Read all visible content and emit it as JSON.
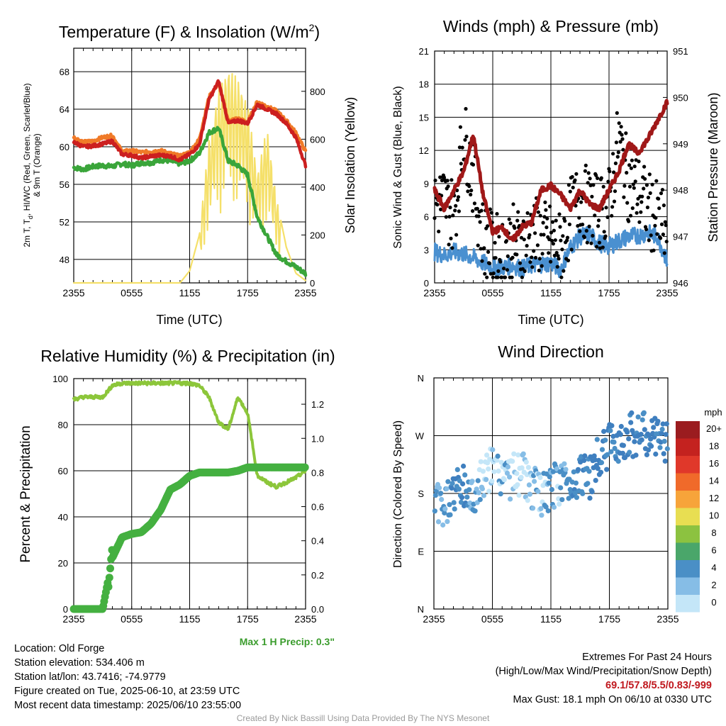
{
  "ticks_time": [
    "2355",
    "0555",
    "1155",
    "1755",
    "2355"
  ],
  "panels": {
    "temp": {
      "title_main": "Temperature (F) & Insolation (W/m",
      "title_sup": "2",
      "title_end": ")",
      "xlabel": "Time (UTC)",
      "ylabel_left_line1": "2m T, T",
      "ylabel_left_sub": "d",
      "ylabel_left_line1_end": ", HI/WC (Red, Green, Scarlet/Blue)",
      "ylabel_left_line2": "& 9m T (Orange)",
      "ylabel_right": "Solar Insolation (Yellow)",
      "yticks_left": [
        "48",
        "52",
        "56",
        "60",
        "64",
        "68"
      ],
      "yticks_right": [
        "0",
        "200",
        "400",
        "600",
        "800"
      ]
    },
    "wind": {
      "title": "Winds (mph) & Pressure (mb)",
      "xlabel": "Time (UTC)",
      "ylabel_left": "Sonic Wind & Gust (Blue, Black)",
      "ylabel_right": "Station Pressure (Maroon)",
      "yticks_left": [
        "0",
        "3",
        "6",
        "9",
        "12",
        "15",
        "18",
        "21"
      ],
      "yticks_right": [
        "946",
        "947",
        "948",
        "949",
        "950",
        "951"
      ]
    },
    "rh": {
      "title": "Relative Humidity (%) & Precipitation (in)",
      "ylabel_left": "Percent & Precipitation",
      "yticks_left": [
        "0",
        "20",
        "40",
        "60",
        "80",
        "100"
      ],
      "yticks_right": [
        "0.0",
        "0.2",
        "0.4",
        "0.6",
        "0.8",
        "1.0",
        "1.2"
      ],
      "max_precip": "Max 1 H Precip: 0.3\""
    },
    "dir": {
      "title": "Wind Direction",
      "ylabel_left": "Direction (Colored By Speed)",
      "yticks_left": [
        "N",
        "E",
        "S",
        "W",
        "N"
      ],
      "legend_title": "mph",
      "legend_labels": [
        "20+",
        "18",
        "16",
        "14",
        "12",
        "10",
        "8",
        "6",
        "4",
        "2",
        "0"
      ],
      "legend_colors": [
        "#9b1c1f",
        "#c4221f",
        "#e0382a",
        "#f06a2a",
        "#f7a43a",
        "#e8de52",
        "#8cc240",
        "#4aa66a",
        "#4a8fc6",
        "#86bde6",
        "#c4e6f8"
      ]
    }
  },
  "colors": {
    "temp_red": "#cc1f1f",
    "temp_orange": "#f07a28",
    "temp_green": "#3aa53a",
    "insolation": "#f5e06a",
    "wind_blue": "#4a90d0",
    "gust_black": "#000000",
    "pressure": "#a01818",
    "rh_line": "#8cc63a",
    "precip": "#44b040"
  },
  "chart_data": [
    {
      "type": "line",
      "title": "Temperature (F) & Insolation (W/m2)",
      "xlabel": "Time (UTC)",
      "ylabel": "2m T, Td, HI/WC (Red, Green, Scarlet/Blue) & 9m T (Orange)",
      "y2label": "Solar Insolation (Yellow)",
      "x_ticks": [
        "2355",
        "0555",
        "1155",
        "1755",
        "2355"
      ],
      "ylim": [
        45.5,
        70.5
      ],
      "y2lim": [
        0,
        980
      ],
      "x_hours": [
        0,
        1,
        2,
        3,
        4,
        5,
        6,
        7,
        8,
        9,
        10,
        11,
        12,
        13,
        14,
        15,
        16,
        17,
        18,
        19,
        20,
        21,
        22,
        23,
        24
      ],
      "series": [
        {
          "name": "2m T",
          "values": [
            60.5,
            60.0,
            60.1,
            60.3,
            60.6,
            59.2,
            59.1,
            58.8,
            59.0,
            59.1,
            59.0,
            58.6,
            59.2,
            60.2,
            65.0,
            67.0,
            62.5,
            62.8,
            62.5,
            64.5,
            64.0,
            63.5,
            62.5,
            61.0,
            58.0
          ]
        },
        {
          "name": "9m T",
          "values": [
            61.0,
            60.5,
            60.6,
            61.0,
            61.2,
            59.5,
            59.6,
            59.4,
            59.5,
            59.6,
            59.3,
            59.0,
            59.4,
            60.8,
            65.3,
            66.8,
            62.8,
            63.0,
            62.6,
            64.8,
            64.3,
            63.8,
            62.8,
            61.5,
            59.5
          ]
        },
        {
          "name": "Td",
          "values": [
            57.8,
            57.6,
            57.9,
            58.0,
            57.9,
            58.2,
            58.0,
            58.3,
            58.3,
            58.6,
            58.5,
            58.2,
            58.5,
            59.3,
            61.5,
            62.0,
            58.5,
            58.0,
            57.0,
            52.5,
            50.5,
            48.5,
            47.8,
            47.2,
            46.5
          ]
        },
        {
          "name": "Solar Insolation",
          "values": [
            0,
            0,
            0,
            0,
            0,
            0,
            0,
            0,
            0,
            0,
            0,
            0,
            50,
            200,
            600,
            800,
            900,
            850,
            750,
            450,
            650,
            350,
            150,
            40,
            10
          ]
        }
      ]
    },
    {
      "type": "line",
      "title": "Winds (mph) & Pressure (mb)",
      "xlabel": "Time (UTC)",
      "ylabel": "Sonic Wind & Gust (Blue, Black)",
      "y2label": "Station Pressure (Maroon)",
      "x_ticks": [
        "2355",
        "0555",
        "1155",
        "1755",
        "2355"
      ],
      "ylim": [
        0,
        21
      ],
      "y2lim": [
        946,
        951
      ],
      "x_hours": [
        0,
        1,
        2,
        3,
        4,
        5,
        6,
        7,
        8,
        9,
        10,
        11,
        12,
        13,
        14,
        15,
        16,
        17,
        18,
        19,
        20,
        21,
        22,
        23,
        24
      ],
      "series": [
        {
          "name": "Sonic Wind",
          "values": [
            2.8,
            2.5,
            2.8,
            2.6,
            2.3,
            1.8,
            1.5,
            1.4,
            1.6,
            1.3,
            1.6,
            1.7,
            1.8,
            1.2,
            3.2,
            4.2,
            4.4,
            3.6,
            3.3,
            3.8,
            4.2,
            4.3,
            4.5,
            4.2,
            2.0
          ]
        },
        {
          "name": "Station Pressure",
          "values": [
            948.0,
            947.6,
            948.0,
            948.4,
            949.2,
            947.9,
            947.1,
            947.2,
            946.9,
            947.2,
            947.3,
            948.0,
            948.1,
            947.9,
            947.6,
            948.0,
            947.7,
            947.6,
            948.0,
            948.4,
            949.0,
            948.8,
            949.1,
            949.5,
            949.9
          ]
        },
        {
          "name": "Gust",
          "values": [
            9.5,
            10.0,
            8.0,
            18.1,
            12.5,
            5.5,
            4.0,
            3.5,
            5.0,
            4.5,
            6.0,
            5.5,
            5.0,
            4.0,
            8.0,
            10.5,
            9.0,
            8.5,
            9.5,
            17.5,
            12.0,
            11.0,
            9.0,
            7.5,
            6.0
          ]
        }
      ]
    },
    {
      "type": "line",
      "title": "Relative Humidity (%) & Precipitation (in)",
      "ylabel": "Percent & Precipitation",
      "x_ticks": [
        "2355",
        "0555",
        "1155",
        "1755",
        "2355"
      ],
      "ylim": [
        0,
        100
      ],
      "y2lim": [
        0,
        1.35
      ],
      "x_hours": [
        0,
        1,
        2,
        3,
        4,
        5,
        6,
        7,
        8,
        9,
        10,
        11,
        12,
        13,
        14,
        15,
        16,
        17,
        18,
        19,
        20,
        21,
        22,
        23,
        24
      ],
      "series": [
        {
          "name": "Relative Humidity",
          "values": [
            91,
            92,
            92,
            92,
            97,
            98,
            98,
            98,
            98,
            98,
            98,
            98,
            98,
            97,
            92,
            81,
            78,
            92,
            85,
            58,
            55,
            53,
            55,
            57,
            60
          ]
        },
        {
          "name": "Precipitation",
          "values": [
            0,
            0,
            0,
            0,
            0.3,
            0.42,
            0.44,
            0.45,
            0.5,
            0.58,
            0.7,
            0.73,
            0.78,
            0.8,
            0.8,
            0.8,
            0.8,
            0.81,
            0.83,
            0.83,
            0.83,
            0.83,
            0.83,
            0.83,
            0.83
          ]
        }
      ]
    },
    {
      "type": "scatter",
      "title": "Wind Direction",
      "ylabel": "Direction (Colored By Speed)",
      "x_ticks": [
        "2355",
        "0555",
        "1155",
        "1755",
        "2355"
      ],
      "y_ticks": [
        "N",
        "E",
        "S",
        "W",
        "N"
      ],
      "ylim": [
        0,
        360
      ],
      "colorbar_label": "mph",
      "x_hours": [
        0,
        1,
        2,
        3,
        4,
        5,
        6,
        7,
        8,
        9,
        10,
        11,
        12,
        13,
        14,
        15,
        16,
        17,
        18,
        19,
        20,
        21,
        22,
        23,
        24
      ],
      "direction_deg": [
        170,
        160,
        185,
        190,
        175,
        200,
        220,
        210,
        205,
        215,
        190,
        175,
        185,
        200,
        195,
        215,
        205,
        240,
        255,
        265,
        270,
        275,
        268,
        262,
        265
      ],
      "speed_mph": [
        3,
        3,
        4,
        4,
        3,
        2,
        1,
        2,
        1,
        1,
        2,
        2,
        3,
        2,
        4,
        4,
        5,
        5,
        4,
        5,
        5,
        5,
        5,
        5,
        4
      ]
    }
  ],
  "info": {
    "location": "Location: Old Forge",
    "elevation": "Station elevation: 534.406 m",
    "latlon": "Station lat/lon: 43.7416; -74.9779",
    "created": "Figure created on Tue, 2025-06-10, at 23:59 UTC",
    "recent": "Most recent data timestamp: 2025/06/10 23:55:00"
  },
  "extremes": {
    "heading": "Extremes For Past 24 Hours",
    "subheading": "(High/Low/Max Wind/Precipitation/Snow Depth)",
    "values": "69.1/57.8/5.5/0.83/-999",
    "gust": "Max Gust: 18.1 mph On 06/10 at 0330 UTC"
  },
  "credit": "Created By Nick Bassill Using Data Provided By The NYS Mesonet"
}
